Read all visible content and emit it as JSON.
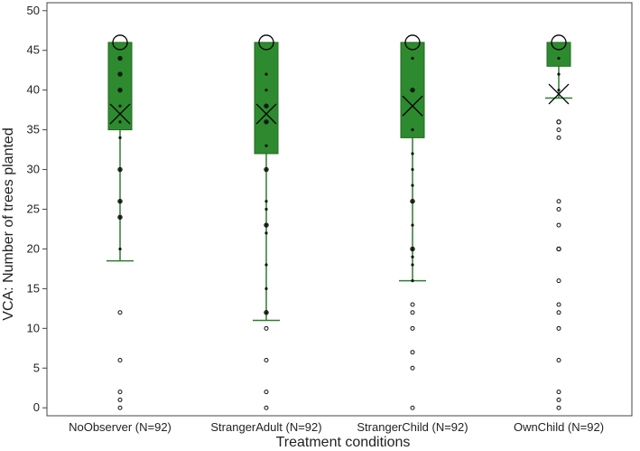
{
  "chart_data": {
    "type": "box",
    "title": "",
    "xlabel": "Treatment conditions",
    "ylabel": "VCA: Number of trees planted",
    "ylim": [
      -1,
      51
    ],
    "yticks": [
      0,
      5,
      10,
      15,
      20,
      25,
      30,
      35,
      40,
      45,
      50
    ],
    "grid": false,
    "legend": "none",
    "colors": {
      "box": "#2e8a2e",
      "box_edge": "#1f6b1f",
      "whisker": "#2e7d2e",
      "marker": "#000000"
    },
    "categories": [
      "NoObserver (N=92)",
      "StrangerAdult (N=92)",
      "StrangerChild (N=92)",
      "OwnChild (N=92)"
    ],
    "boxes": [
      {
        "q1": 35,
        "median": 46,
        "q3": 46,
        "mean": 37,
        "whisker_low": 18.5,
        "whisker_high": 46,
        "outliers": [
          0,
          1,
          2,
          6,
          12
        ],
        "points": [
          20,
          24,
          26,
          30,
          34,
          36,
          38,
          40,
          42,
          44
        ],
        "hollow_points": [
          24,
          26,
          30,
          40,
          42,
          44
        ]
      },
      {
        "q1": 32,
        "median": 46,
        "q3": 46,
        "mean": 37,
        "whisker_low": 11,
        "whisker_high": 46,
        "outliers": [
          0,
          2,
          6,
          10
        ],
        "points": [
          12,
          15,
          18,
          22,
          23,
          25,
          26,
          30,
          33,
          36,
          38,
          40,
          42
        ],
        "hollow_points": [
          12,
          23,
          30,
          36,
          38
        ]
      },
      {
        "q1": 34,
        "median": 46,
        "q3": 46,
        "mean": 38,
        "whisker_low": 16,
        "whisker_high": 46,
        "outliers": [
          0,
          5,
          7,
          10,
          12,
          13
        ],
        "points": [
          16,
          18,
          19,
          20,
          23,
          26,
          28,
          30,
          32,
          35,
          40,
          44
        ],
        "hollow_points": [
          20,
          26,
          40
        ]
      },
      {
        "q1": 43,
        "median": 46,
        "q3": 46,
        "mean": 39.5,
        "whisker_low": 39,
        "whisker_high": 46,
        "outliers": [
          0,
          1,
          2,
          6,
          10,
          12,
          13,
          16,
          20,
          23,
          25,
          26,
          34,
          35,
          36
        ],
        "points": [
          40,
          42,
          44
        ],
        "hollow_points": [
          20,
          36
        ]
      }
    ]
  }
}
